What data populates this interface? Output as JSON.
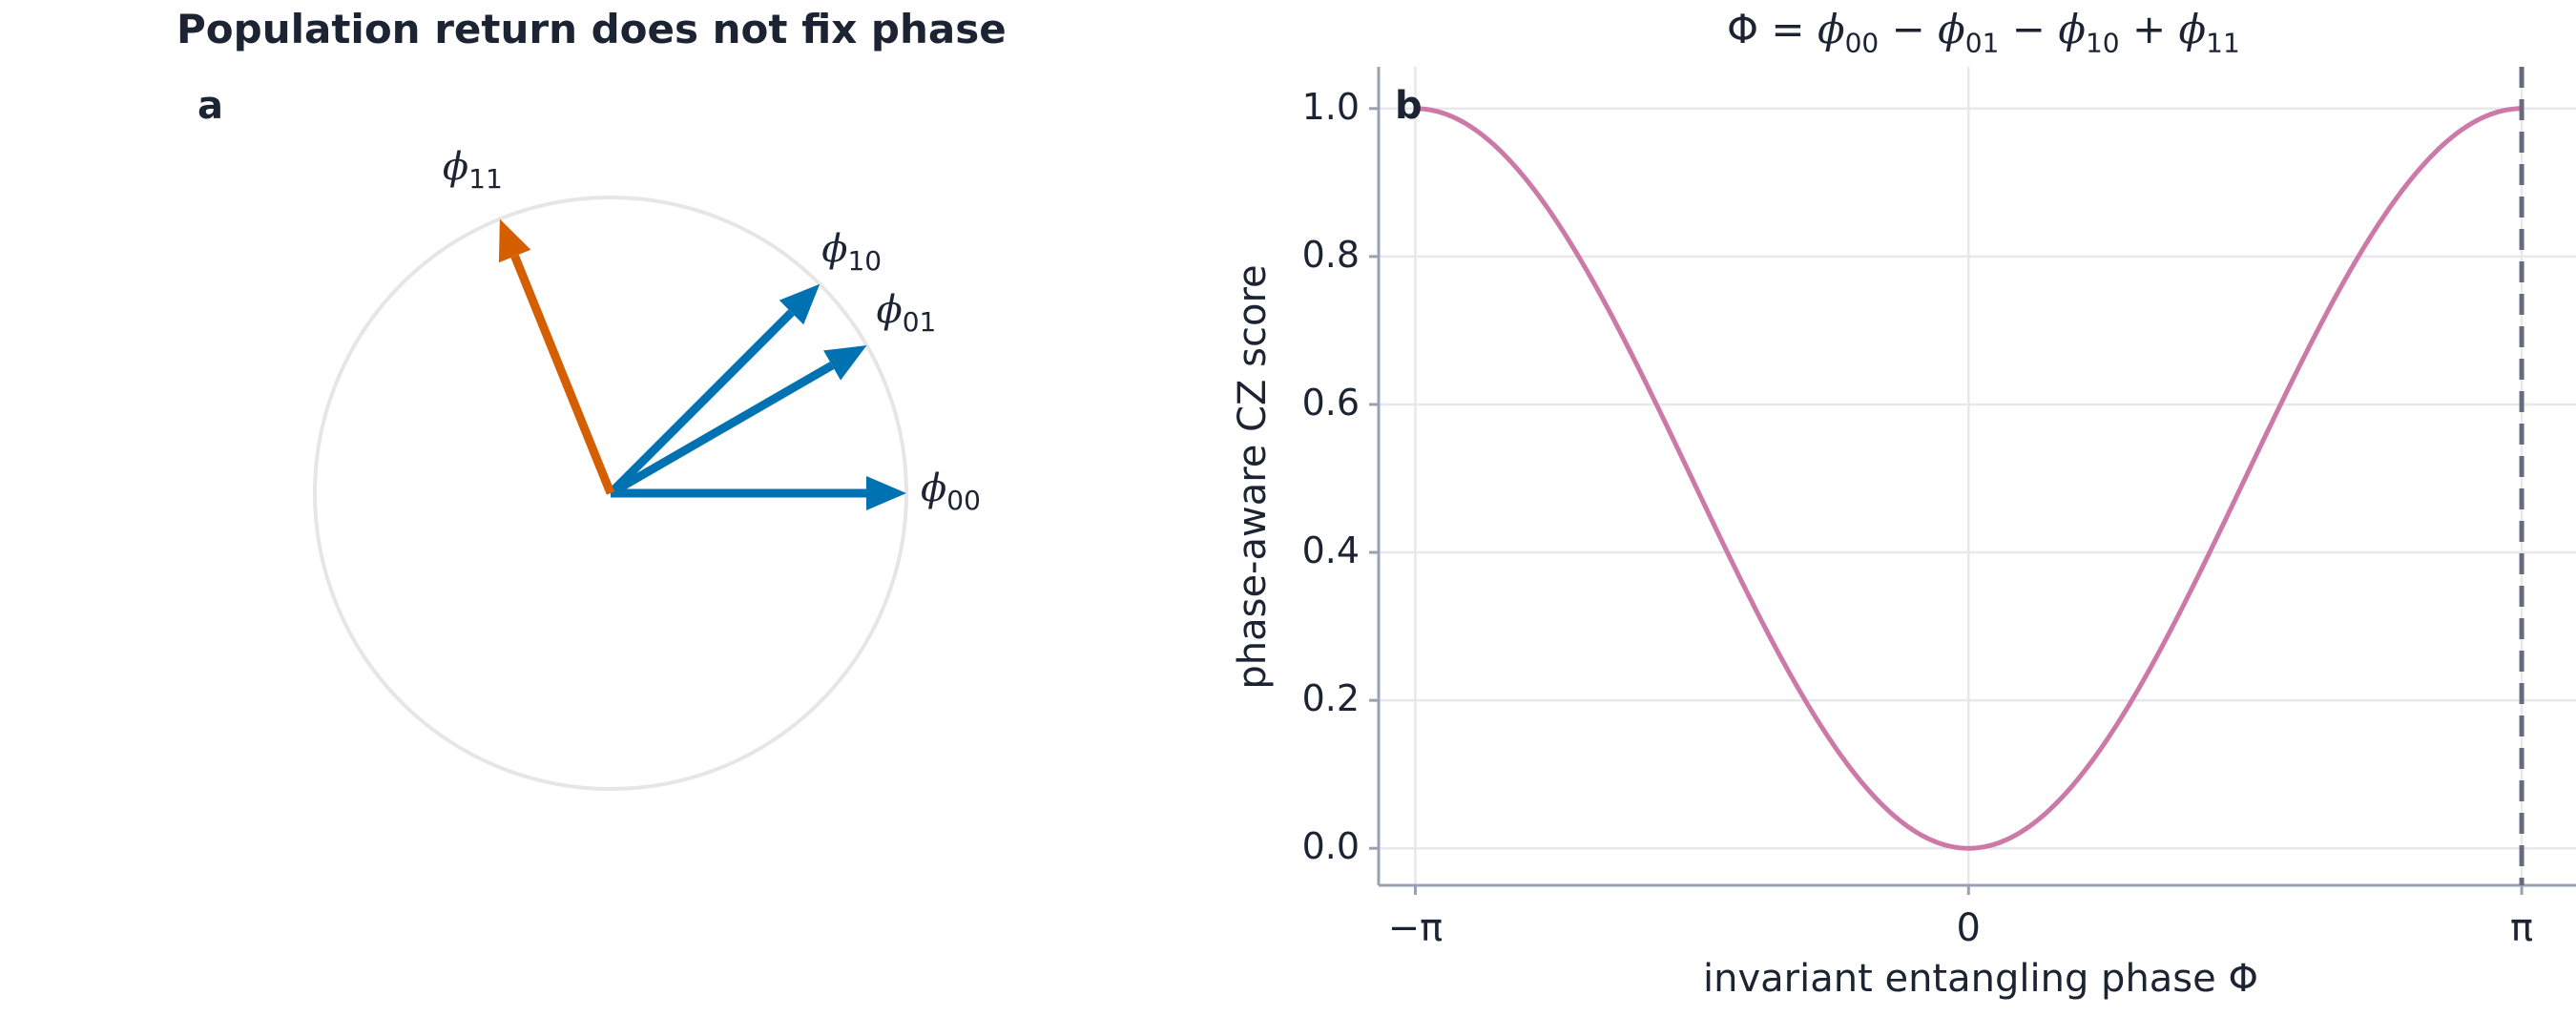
{
  "figure_title": "Population return does not fix phase",
  "panel_a": {
    "label": "a",
    "vectors": [
      {
        "name": "ϕ",
        "sub": "00",
        "angle_deg": 0,
        "color": "#0072b2"
      },
      {
        "name": "ϕ",
        "sub": "01",
        "angle_deg": 30,
        "color": "#0072b2"
      },
      {
        "name": "ϕ",
        "sub": "10",
        "angle_deg": 45,
        "color": "#0072b2"
      },
      {
        "name": "ϕ",
        "sub": "11",
        "angle_deg": 112,
        "color": "#d55e00"
      }
    ],
    "circle_color": "#e6e6e6"
  },
  "panel_b": {
    "label": "b",
    "title": {
      "lhs": "Φ",
      "t1": "ϕ",
      "s1": "00",
      "t2": "ϕ",
      "s2": "01",
      "t3": "ϕ",
      "s3": "10",
      "t4": "ϕ",
      "s4": "11"
    },
    "xlabel": "invariant entangling phase Φ",
    "ylabel": "phase-aware CZ score",
    "xticks": [
      "−π",
      "0",
      "π"
    ],
    "yticks": [
      "0.0",
      "0.2",
      "0.4",
      "0.6",
      "0.8",
      "1.0"
    ]
  },
  "chart_data": {
    "type": "line",
    "function": "score = (1 - cos(Φ)) / 2",
    "x": [
      -3.1416,
      -2.618,
      -2.0944,
      -1.5708,
      -1.0472,
      -0.5236,
      0,
      0.5236,
      1.0472,
      1.5708,
      2.0944,
      2.618,
      3.1416
    ],
    "y": [
      1.0,
      0.933,
      0.75,
      0.5,
      0.25,
      0.067,
      0.0,
      0.067,
      0.25,
      0.5,
      0.75,
      0.933,
      1.0
    ],
    "xlim": [
      -3.35,
      3.45
    ],
    "ylim": [
      -0.05,
      1.05
    ],
    "series_color": "#cc79a7",
    "reference_line": {
      "x": 3.1416,
      "style": "dashed",
      "color": "#666b80"
    },
    "grid": true
  }
}
